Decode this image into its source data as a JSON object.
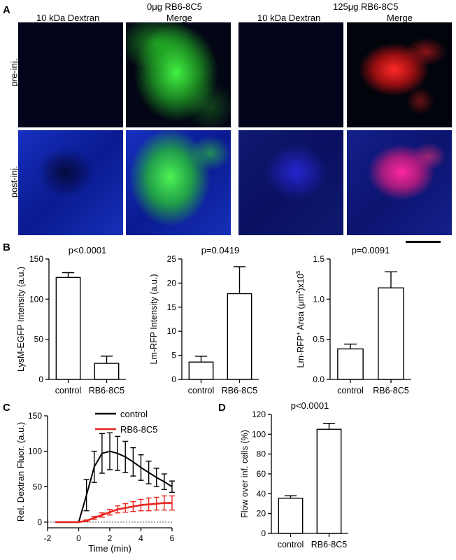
{
  "panelA": {
    "letter": "A",
    "groups": [
      {
        "title": "0μg RB6-8C5",
        "col_labels": [
          "10 kDa Dextran",
          "Merge"
        ]
      },
      {
        "title": "125μg RB6-8C5",
        "col_labels": [
          "10 kDa Dextran",
          "Merge"
        ]
      }
    ],
    "row_labels": [
      "pre-inj.",
      "post-inj."
    ],
    "colors": {
      "dextran": "#1a2bd0",
      "lysm": "#22ee22",
      "lm_rfp": "#ff1a1a",
      "merge_post_125": "#ff2a8a",
      "background": "#04051a"
    }
  },
  "panelB": {
    "letter": "B",
    "charts": [
      {
        "pvalue": "p<0.0001",
        "ylabel": "LysM-EGFP Intensity (a.u.)"
      },
      {
        "pvalue": "p=0.0419",
        "ylabel": "Lm-RFP  Intensity (a.u.)"
      },
      {
        "pvalue": "p=0.0091",
        "ylabel_parts": [
          "Lm-RFP",
          "+",
          " Area (μm",
          "2",
          ")x10",
          "5"
        ]
      }
    ]
  },
  "panelC": {
    "letter": "C"
  },
  "panelD": {
    "letter": "D",
    "pvalue": "p<0.0001"
  },
  "chart_data": [
    {
      "type": "bar",
      "categories": [
        "control",
        "RB6-8C5"
      ],
      "values": [
        127,
        20
      ],
      "errors": [
        6,
        9
      ],
      "ylabel": "LysM-EGFP Intensity (a.u.)",
      "ylim": [
        0,
        150
      ],
      "yticks": [
        0,
        50,
        100,
        150
      ],
      "pvalue": "p<0.0001"
    },
    {
      "type": "bar",
      "categories": [
        "control",
        "RB6-8C5"
      ],
      "values": [
        3.6,
        17.8
      ],
      "errors": [
        1.2,
        5.6
      ],
      "ylabel": "Lm-RFP  Intensity (a.u.)",
      "ylim": [
        0,
        25
      ],
      "yticks": [
        0,
        5,
        10,
        15,
        20,
        25
      ],
      "pvalue": "p=0.0419"
    },
    {
      "type": "bar",
      "categories": [
        "control",
        "RB6-8C5"
      ],
      "values": [
        0.38,
        1.14
      ],
      "errors": [
        0.06,
        0.2
      ],
      "ylabel": "Lm-RFP+ Area (μm2)x105",
      "ylim": [
        0,
        1.5
      ],
      "yticks": [
        0.0,
        0.5,
        1.0,
        1.5
      ],
      "ytick_labels": [
        "0.0",
        "0.5",
        "1.0",
        "1.5"
      ],
      "pvalue": "p=0.0091"
    },
    {
      "type": "line",
      "xlabel": "Time (min)",
      "ylabel": "Rel. Dextran Fluor. (a.u.)",
      "xlim": [
        -2,
        6
      ],
      "ylim": [
        -8,
        150
      ],
      "xticks": [
        -2,
        0,
        2,
        4,
        6
      ],
      "yticks": [
        0,
        50,
        100,
        150
      ],
      "legend_position": "top-right",
      "series": [
        {
          "name": "control",
          "color": "#000000",
          "x": [
            -1.5,
            0,
            0.5,
            1,
            1.5,
            2,
            2.5,
            3,
            3.5,
            4,
            4.5,
            5,
            5.5,
            6
          ],
          "y": [
            0,
            0,
            38,
            78,
            97,
            100,
            97,
            92,
            85,
            77,
            70,
            63,
            57,
            50
          ],
          "err": [
            0,
            0,
            22,
            22,
            28,
            26,
            24,
            22,
            20,
            18,
            16,
            13,
            11,
            8
          ]
        },
        {
          "name": "RB6-8C5",
          "color": "#e8251f",
          "x": [
            -1.5,
            0,
            0.5,
            1,
            1.5,
            2,
            2.5,
            3,
            3.5,
            4,
            4.5,
            5,
            5.5,
            6
          ],
          "y": [
            0,
            0,
            2,
            6,
            10,
            14,
            18,
            20,
            22,
            24,
            25,
            26,
            27,
            27
          ],
          "err": [
            0,
            0,
            1,
            2,
            3,
            4,
            5,
            6,
            7,
            8,
            9,
            9,
            10,
            10
          ]
        }
      ],
      "baseline_dashed": 0
    },
    {
      "type": "bar",
      "categories": [
        "control",
        "RB6-8C5"
      ],
      "values": [
        35.5,
        105
      ],
      "errors": [
        2.5,
        6
      ],
      "ylabel": "Flow over inf. cells (%)",
      "ylim": [
        0,
        120
      ],
      "yticks": [
        0,
        20,
        40,
        60,
        80,
        100,
        120
      ],
      "pvalue": "p<0.0001"
    }
  ]
}
